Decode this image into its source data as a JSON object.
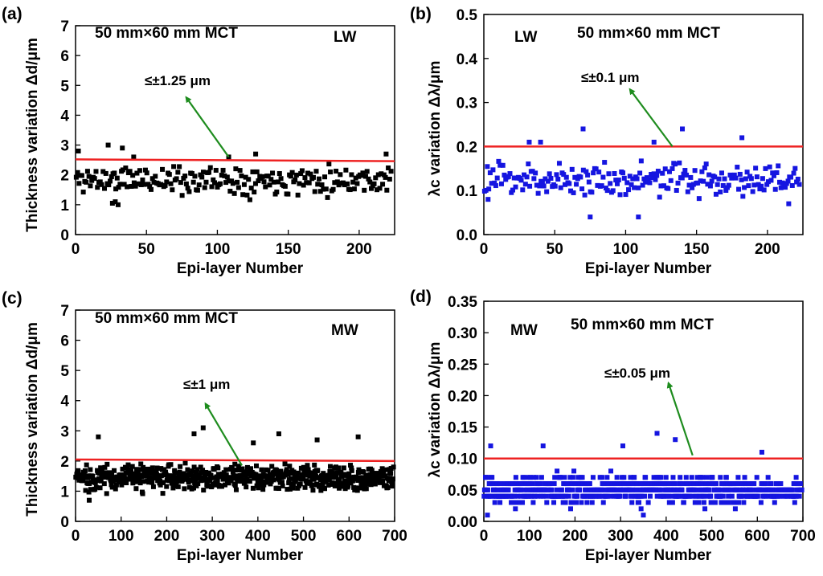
{
  "chart_data": [
    {
      "type": "scatter",
      "panel_label": "(a)",
      "subtitle": "50 mm×60 mm MCT",
      "band": "LW",
      "annotation": "≤±1.25 μm",
      "xlabel": "Epi-layer Number",
      "ylabel": "Thickness variation Δd/μm",
      "xlim": [
        0,
        225
      ],
      "ylim": [
        0,
        7
      ],
      "xticks": [
        0,
        50,
        100,
        150,
        200
      ],
      "yticks": [
        0,
        1,
        2,
        3,
        4,
        5,
        6,
        7
      ],
      "ytick_decimals": 0,
      "threshold_line": {
        "y_start": 2.52,
        "y_end": 2.46,
        "color": "#ee2222"
      },
      "arrow": {
        "from": [
          108,
          2.6
        ],
        "to": [
          78,
          4.6
        ],
        "color": "#1e8c1e"
      },
      "marker_color": "#000000",
      "series": [
        {
          "points": "generated",
          "n": 224,
          "mean": 1.85,
          "spread": 0.45,
          "min": 1.0,
          "max": 2.55,
          "seed": 11,
          "outliers": [
            [
              2,
              2.8
            ],
            [
              23,
              3.0
            ],
            [
              33,
              2.9
            ],
            [
              41,
              2.6
            ],
            [
              108,
              2.6
            ],
            [
              127,
              2.7
            ],
            [
              219,
              2.7
            ],
            [
              26,
              1.05
            ],
            [
              30,
              1.0
            ],
            [
              28,
              1.1
            ]
          ]
        }
      ]
    },
    {
      "type": "scatter",
      "panel_label": "(b)",
      "subtitle": "50 mm×60 mm MCT",
      "band": "LW",
      "annotation": "≤±0.1 μm",
      "xlabel": "Epi-layer Number",
      "ylabel": "λc variation Δλ/μm",
      "xlim": [
        0,
        225
      ],
      "ylim": [
        0,
        0.5
      ],
      "xticks": [
        0,
        50,
        100,
        150,
        200
      ],
      "yticks": [
        0.0,
        0.1,
        0.2,
        0.3,
        0.4,
        0.5
      ],
      "ytick_decimals": 1,
      "threshold_line": {
        "y_start": 0.2,
        "y_end": 0.2,
        "color": "#ee2222"
      },
      "arrow": {
        "from": [
          133,
          0.2
        ],
        "to": [
          103,
          0.33
        ],
        "color": "#1e8c1e"
      },
      "marker_color": "#1515e0",
      "series": [
        {
          "points": "generated",
          "n": 224,
          "mean": 0.125,
          "spread": 0.035,
          "min": 0.07,
          "max": 0.2,
          "seed": 23,
          "outliers": [
            [
              70,
              0.24
            ],
            [
              140,
              0.24
            ],
            [
              75,
              0.04
            ],
            [
              109,
              0.04
            ],
            [
              182,
              0.22
            ],
            [
              40,
              0.21
            ],
            [
              32,
              0.21
            ],
            [
              120,
              0.21
            ],
            [
              3,
              0.08
            ],
            [
              215,
              0.07
            ]
          ]
        }
      ]
    },
    {
      "type": "scatter",
      "panel_label": "(c)",
      "subtitle": "50 mm×60 mm MCT",
      "band": "MW",
      "annotation": "≤±1 μm",
      "xlabel": "Epi-layer Number",
      "ylabel": "Thickness variation Δd/μm",
      "xlim": [
        0,
        700
      ],
      "ylim": [
        0,
        7
      ],
      "xticks": [
        0,
        100,
        200,
        300,
        400,
        500,
        600,
        700
      ],
      "yticks": [
        0,
        1,
        2,
        3,
        4,
        5,
        6,
        7
      ],
      "ytick_decimals": 0,
      "threshold_line": {
        "y_start": 2.05,
        "y_end": 2.0,
        "color": "#ee2222"
      },
      "arrow": {
        "from": [
          365,
          1.85
        ],
        "to": [
          285,
          3.9
        ],
        "color": "#1e8c1e"
      },
      "marker_color": "#000000",
      "series": [
        {
          "points": "generated",
          "n": 680,
          "mean": 1.45,
          "spread": 0.38,
          "min": 0.6,
          "max": 2.25,
          "seed": 37,
          "outliers": [
            [
              50,
              2.8
            ],
            [
              280,
              3.1
            ],
            [
              260,
              2.9
            ],
            [
              446,
              2.9
            ],
            [
              390,
              2.6
            ],
            [
              530,
              2.7
            ],
            [
              620,
              2.8
            ],
            [
              30,
              0.7
            ]
          ]
        }
      ]
    },
    {
      "type": "scatter",
      "panel_label": "(d)",
      "subtitle": "50 mm×60 mm MCT",
      "band": "MW",
      "annotation": "≤±0.05 μm",
      "xlabel": "Epi-layer Number",
      "ylabel": "λc variation Δλ/μm",
      "xlim": [
        0,
        700
      ],
      "ylim": [
        0,
        0.35
      ],
      "xticks": [
        0,
        100,
        200,
        300,
        400,
        500,
        600,
        700
      ],
      "yticks": [
        0.0,
        0.05,
        0.1,
        0.15,
        0.2,
        0.25,
        0.3,
        0.35
      ],
      "ytick_decimals": 2,
      "threshold_line": {
        "y_start": 0.1,
        "y_end": 0.1,
        "color": "#ee2222"
      },
      "arrow": {
        "from": [
          458,
          0.105
        ],
        "to": [
          405,
          0.22
        ],
        "color": "#1e8c1e"
      },
      "marker_color": "#1515e0",
      "series": [
        {
          "points": "generated-quantized",
          "n": 680,
          "mean": 0.05,
          "spread": 0.02,
          "min": 0.02,
          "max": 0.1,
          "step": 0.01,
          "seed": 53,
          "outliers": [
            [
              380,
              0.14
            ],
            [
              420,
              0.13
            ],
            [
              15,
              0.12
            ],
            [
              130,
              0.12
            ],
            [
              305,
              0.12
            ],
            [
              610,
              0.11
            ],
            [
              350,
              0.01
            ],
            [
              8,
              0.01
            ],
            [
              345,
              0.02
            ]
          ]
        }
      ]
    }
  ]
}
